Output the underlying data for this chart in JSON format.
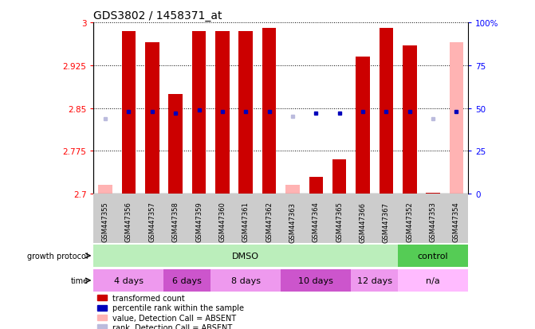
{
  "title": "GDS3802 / 1458371_at",
  "samples": [
    "GSM447355",
    "GSM447356",
    "GSM447357",
    "GSM447358",
    "GSM447359",
    "GSM447360",
    "GSM447361",
    "GSM447362",
    "GSM447363",
    "GSM447364",
    "GSM447365",
    "GSM447366",
    "GSM447367",
    "GSM447352",
    "GSM447353",
    "GSM447354"
  ],
  "ylim": [
    2.7,
    3.0
  ],
  "yticks": [
    2.7,
    2.775,
    2.85,
    2.925,
    3.0
  ],
  "ytick_labels": [
    "2.7",
    "2.775",
    "2.85",
    "2.925",
    "3"
  ],
  "right_yticks": [
    0,
    25,
    50,
    75,
    100
  ],
  "red_bar_color": "#CC0000",
  "pink_bar_color": "#FFB3B3",
  "blue_bar_color": "#0000BB",
  "light_blue_bar_color": "#BBBBDD",
  "transformed_values": [
    2.715,
    2.985,
    2.965,
    2.875,
    2.985,
    2.985,
    2.985,
    2.99,
    2.715,
    2.73,
    2.76,
    2.94,
    2.99,
    2.96,
    2.702,
    2.965
  ],
  "absent_call": [
    true,
    false,
    false,
    false,
    false,
    false,
    false,
    false,
    true,
    false,
    false,
    false,
    false,
    false,
    false,
    true
  ],
  "percentile_rank_pct": [
    44,
    48,
    48,
    47,
    49,
    48,
    48,
    48,
    45,
    47,
    47,
    48,
    48,
    48,
    44,
    48
  ],
  "rank_absent": [
    true,
    false,
    false,
    false,
    false,
    false,
    false,
    false,
    true,
    false,
    false,
    false,
    false,
    false,
    true,
    false
  ],
  "baseline": 2.7,
  "growth_protocol_groups": [
    {
      "label": "DMSO",
      "start": 0,
      "end": 13,
      "color": "#BBEEBB"
    },
    {
      "label": "control",
      "start": 13,
      "end": 16,
      "color": "#55CC55"
    }
  ],
  "time_groups": [
    {
      "label": "4 days",
      "start": 0,
      "end": 3,
      "color": "#EE99EE"
    },
    {
      "label": "6 days",
      "start": 3,
      "end": 5,
      "color": "#CC55CC"
    },
    {
      "label": "8 days",
      "start": 5,
      "end": 8,
      "color": "#EE99EE"
    },
    {
      "label": "10 days",
      "start": 8,
      "end": 11,
      "color": "#CC55CC"
    },
    {
      "label": "12 days",
      "start": 11,
      "end": 13,
      "color": "#EE99EE"
    },
    {
      "label": "n/a",
      "start": 13,
      "end": 16,
      "color": "#FFBBFF"
    }
  ],
  "legend_labels": [
    "transformed count",
    "percentile rank within the sample",
    "value, Detection Call = ABSENT",
    "rank, Detection Call = ABSENT"
  ],
  "legend_colors": [
    "#CC0000",
    "#0000BB",
    "#FFB3B3",
    "#BBBBDD"
  ]
}
